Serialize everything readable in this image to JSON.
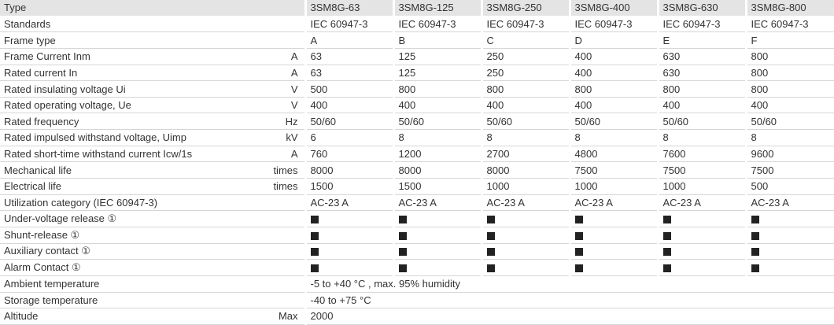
{
  "table": {
    "header": {
      "label": "Type",
      "columns": [
        "3SM8G-63",
        "3SM8G-125",
        "3SM8G-250",
        "3SM8G-400",
        "3SM8G-630",
        "3SM8G-800"
      ]
    },
    "rows": [
      {
        "label": "Standards",
        "values": [
          "IEC 60947-3",
          "IEC 60947-3",
          "IEC 60947-3",
          "IEC 60947-3",
          "IEC 60947-3",
          "IEC 60947-3"
        ]
      },
      {
        "label": "Frame type",
        "values": [
          "A",
          "B",
          "C",
          "D",
          "E",
          "F"
        ]
      },
      {
        "label": "Frame Current Inm",
        "unit": "A",
        "values": [
          "63",
          "125",
          "250",
          "400",
          "630",
          "800"
        ]
      },
      {
        "label": "Rated current In",
        "unit": "A",
        "values": [
          "63",
          "125",
          "250",
          "400",
          "630",
          "800"
        ]
      },
      {
        "label": "Rated insulating voltage Ui",
        "unit": "V",
        "values": [
          "500",
          "800",
          "800",
          "800",
          "800",
          "800"
        ]
      },
      {
        "label": "Rated operating voltage, Ue",
        "unit": "V",
        "values": [
          "400",
          "400",
          "400",
          "400",
          "400",
          "400"
        ]
      },
      {
        "label": "Rated frequency",
        "unit": "Hz",
        "values": [
          "50/60",
          "50/60",
          "50/60",
          "50/60",
          "50/60",
          "50/60"
        ]
      },
      {
        "label": "Rated impulsed withstand voltage, Uimp",
        "unit": "kV",
        "values": [
          "6",
          "8",
          "8",
          "8",
          "8",
          "8"
        ]
      },
      {
        "label": "Rated short-time withstand current Icw/1s",
        "unit": "A",
        "values": [
          "760",
          "1200",
          "2700",
          "4800",
          "7600",
          "9600"
        ]
      },
      {
        "label": "Mechanical life",
        "unit": "times",
        "values": [
          "8000",
          "8000",
          "8000",
          "7500",
          "7500",
          "7500"
        ]
      },
      {
        "label": "Electrical life",
        "unit": "times",
        "values": [
          "1500",
          "1500",
          "1000",
          "1000",
          "1000",
          "500"
        ]
      },
      {
        "label": "Utilization category (IEC 60947-3)",
        "values": [
          "AC-23 A",
          "AC-23 A",
          "AC-23 A",
          "AC-23 A",
          "AC-23 A",
          "AC-23 A"
        ]
      },
      {
        "label": "Under-voltage release ①"
      },
      {
        "label": "Shunt-release ①"
      },
      {
        "label": "Auxiliary contact ①"
      },
      {
        "label": "Alarm Contact ①"
      },
      {
        "label": "Ambient temperature",
        "value": "-5 to +40 °C , max. 95% humidity"
      },
      {
        "label": "Storage temperature",
        "value": "-40 to +75 °C"
      },
      {
        "label": "Altitude",
        "unit": "Max",
        "value": "2000"
      }
    ]
  }
}
